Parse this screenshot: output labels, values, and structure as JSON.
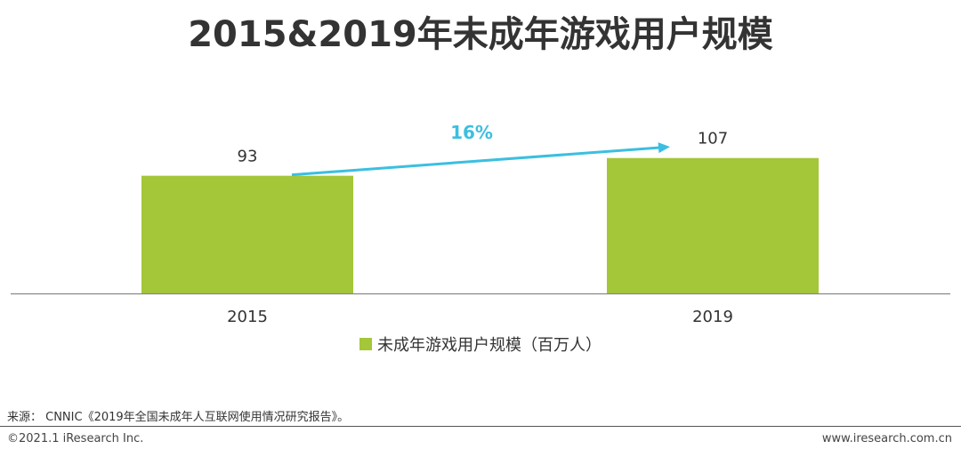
{
  "title": "2015&2019年未成年游戏用户规模",
  "chart_data": {
    "type": "bar",
    "categories": [
      "2015",
      "2019"
    ],
    "series": [
      {
        "name": "未成年游戏用户规模（百万人）",
        "values": [
          93,
          107
        ]
      }
    ],
    "annotation": {
      "text": "16%",
      "from": "2015",
      "to": "2019",
      "style": "growth-arrow"
    },
    "ylim": [
      0,
      130
    ],
    "grid": false,
    "legend": "bottom-center",
    "colors": {
      "bar": "#a4c639",
      "arrow": "#3bbfe0",
      "axis": "#888888"
    }
  },
  "footer": {
    "source": "来源：  CNNIC《2019年全国未成年人互联网使用情况研究报告》。",
    "copyright": "©2021.1 iResearch Inc.",
    "website": "www.iresearch.com.cn"
  }
}
